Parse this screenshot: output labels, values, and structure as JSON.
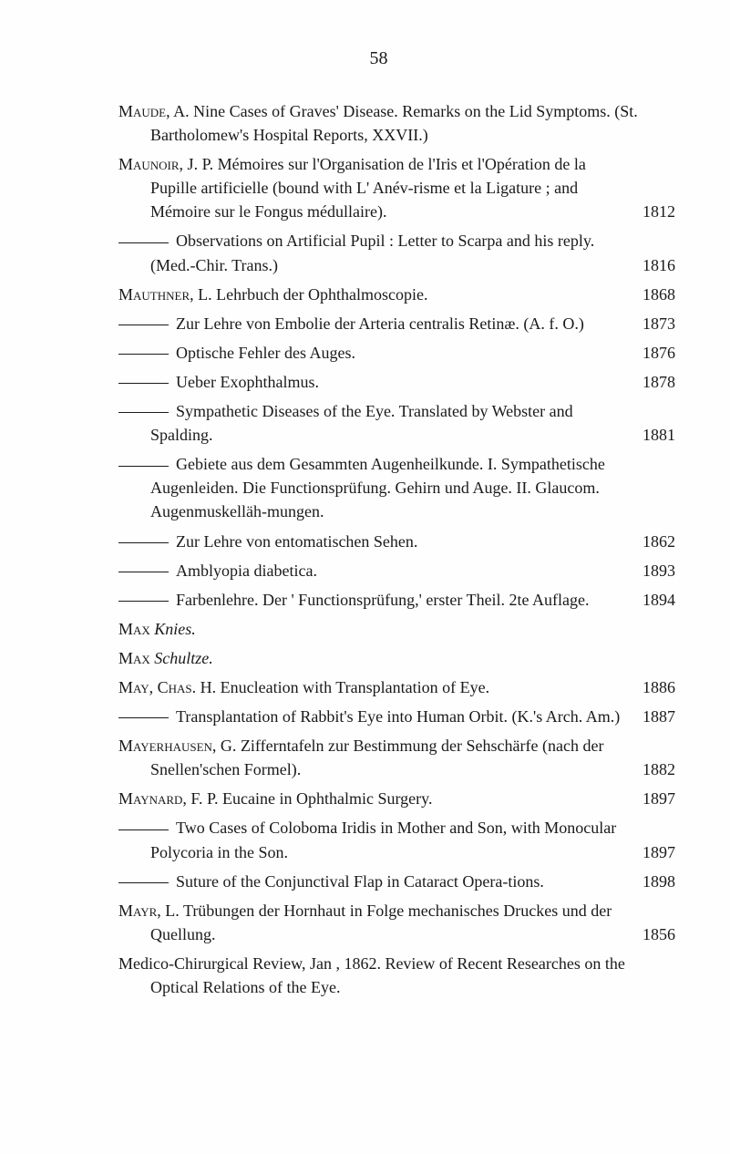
{
  "page_number": "58",
  "entries": [
    {
      "type": "main",
      "author": "Maude, A.",
      "text": "Nine Cases of Graves' Disease. Remarks on the Lid Symptoms. (St. Bartholomew's Hospital Reports, XXVII.)",
      "year": ""
    },
    {
      "type": "main",
      "author": "Maunoir, J. P.",
      "text": "Mémoires sur l'Organisation de l'Iris et l'Opération de la Pupille artificielle (bound with L' Anév-risme et la Ligature ; and Mémoire sur le Fongus médullaire).",
      "year": "1812"
    },
    {
      "type": "sub",
      "text": "Observations on Artificial Pupil : Letter to Scarpa and his reply. (Med.-Chir. Trans.)",
      "year": "1816"
    },
    {
      "type": "main",
      "author": "Mauthner, L.",
      "text": "Lehrbuch der Ophthalmoscopie.",
      "year": "1868"
    },
    {
      "type": "sub",
      "text": "Zur Lehre von Embolie der Arteria centralis Retinæ. (A. f. O.)",
      "year": "1873"
    },
    {
      "type": "sub",
      "text": "Optische Fehler des Auges.",
      "year": "1876"
    },
    {
      "type": "sub",
      "text": "Ueber Exophthalmus.",
      "year": "1878"
    },
    {
      "type": "sub",
      "text": "Sympathetic Diseases of the Eye. Translated by Webster and Spalding.",
      "year": "1881"
    },
    {
      "type": "sub",
      "text": "Gebiete aus dem Gesammten Augenheilkunde. I. Sympathetische Augenleiden. Die Functionsprüfung. Gehirn und Auge. II. Glaucom. Augenmuskelläh-mungen.",
      "year": ""
    },
    {
      "type": "sub",
      "text": "Zur Lehre von entomatischen Sehen.",
      "year": "1862"
    },
    {
      "type": "sub",
      "text": "Amblyopia diabetica.",
      "year": "1893"
    },
    {
      "type": "sub",
      "text": "Farbenlehre. Der ' Functionsprüfung,' erster Theil. 2te Auflage.",
      "year": "1894"
    },
    {
      "type": "main",
      "author": "Max",
      "text": "Knies.",
      "italic": true,
      "year": ""
    },
    {
      "type": "main",
      "author": "Max",
      "text": "Schultze.",
      "italic": true,
      "year": ""
    },
    {
      "type": "main",
      "author": "May, Chas. H.",
      "text": "Enucleation with Transplantation of Eye.",
      "year": "1886"
    },
    {
      "type": "sub",
      "text": "Transplantation of Rabbit's Eye into Human Orbit. (K.'s Arch. Am.)",
      "year": "1887"
    },
    {
      "type": "main",
      "author": "Mayerhausen, G.",
      "text": "Zifferntafeln zur Bestimmung der Sehschärfe (nach der Snellen'schen Formel).",
      "year": "1882"
    },
    {
      "type": "main",
      "author": "Maynard, F. P.",
      "text": "Eucaine in Ophthalmic Surgery.",
      "year": "1897"
    },
    {
      "type": "sub",
      "text": "Two Cases of Coloboma Iridis in Mother and Son, with Monocular Polycoria in the Son.",
      "year": "1897"
    },
    {
      "type": "sub",
      "text": "Suture of the Conjunctival Flap in Cataract Opera-tions.",
      "year": "1898"
    },
    {
      "type": "main",
      "author": "Mayr, L.",
      "text": "Trübungen der Hornhaut in Folge mechanisches Druckes und der Quellung.",
      "year": "1856"
    },
    {
      "type": "main",
      "author": "",
      "text": "Medico-Chirurgical Review, Jan , 1862. Review of Recent Researches on the Optical Relations of the Eye.",
      "year": ""
    }
  ]
}
